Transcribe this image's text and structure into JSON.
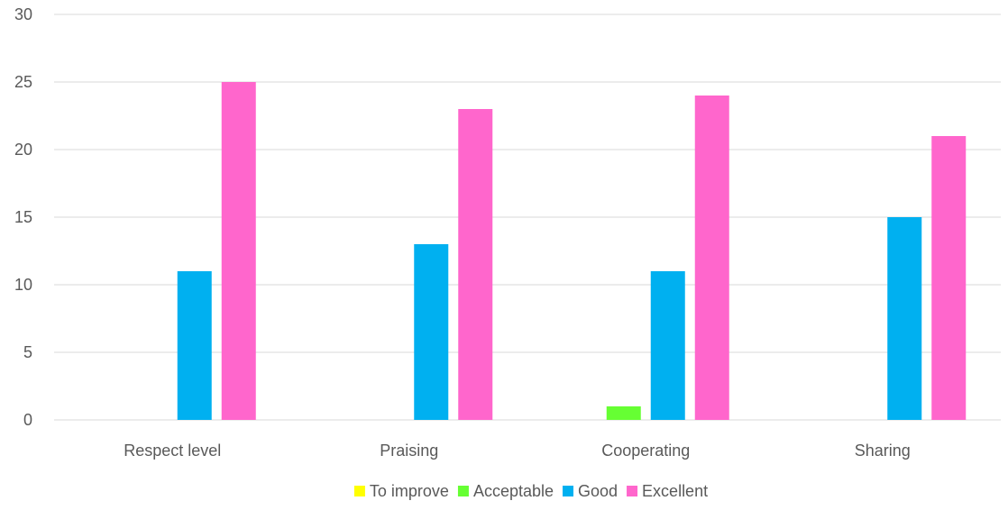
{
  "chart_data": {
    "type": "bar",
    "title": "",
    "xlabel": "",
    "ylabel": "",
    "categories": [
      "Respect level",
      "Praising",
      "Cooperating",
      "Sharing"
    ],
    "series": [
      {
        "name": "To improve",
        "color": "#ffff00",
        "values": [
          0,
          0,
          0,
          0
        ]
      },
      {
        "name": "Acceptable",
        "color": "#66ff33",
        "values": [
          0,
          0,
          1,
          0
        ]
      },
      {
        "name": "Good",
        "color": "#00b0f0",
        "values": [
          11,
          13,
          11,
          15
        ]
      },
      {
        "name": "Excellent",
        "color": "#ff66cc",
        "values": [
          25,
          23,
          24,
          21
        ]
      }
    ],
    "ylim": [
      0,
      30
    ],
    "yticks": [
      0,
      5,
      10,
      15,
      20,
      25,
      30
    ],
    "grid": true,
    "legend_position": "bottom"
  }
}
